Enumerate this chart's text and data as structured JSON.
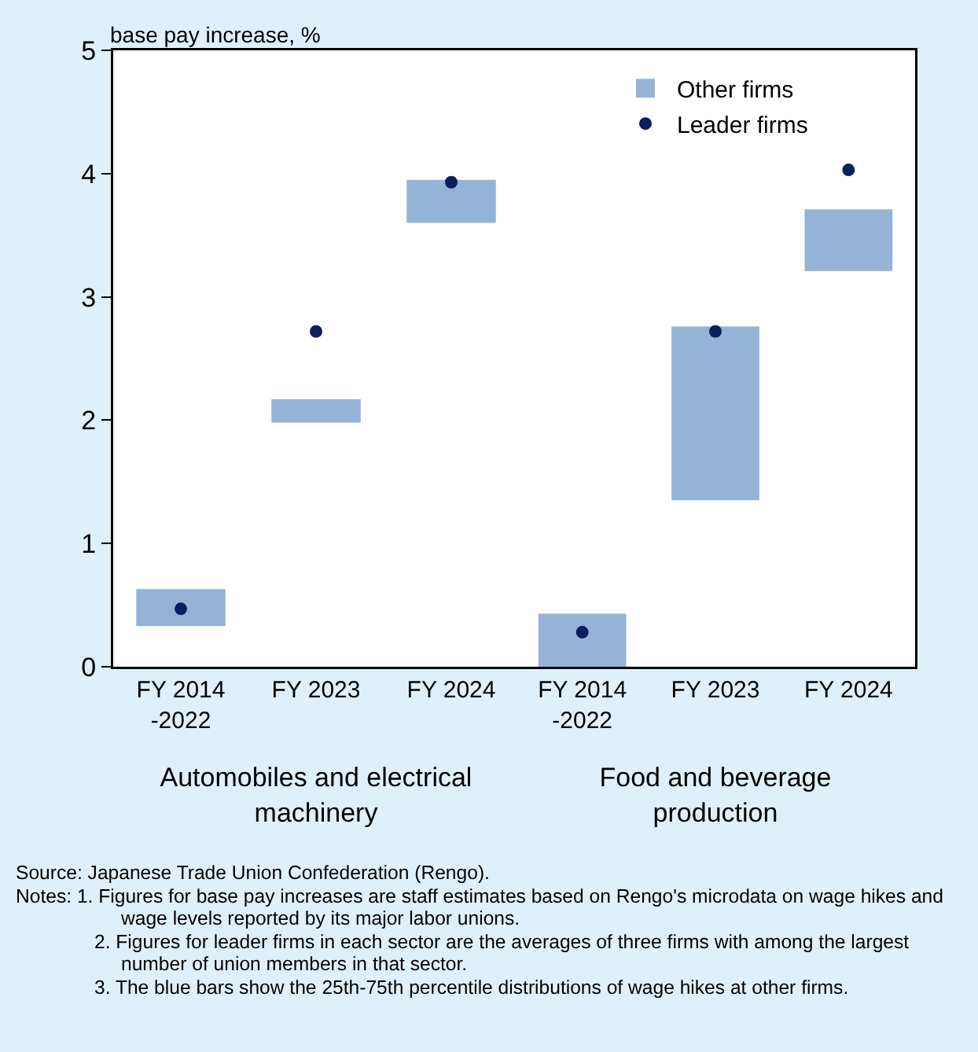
{
  "chart_data": [
    {
      "type": "bar",
      "ylabel": "base pay increase, %",
      "xlabel": "Automobiles and electrical\nmachinery",
      "categories": [
        "FY 2014\n-2022",
        "FY 2023",
        "FY 2024"
      ],
      "series": [
        {
          "color": "#95b3d7",
          "values": [
            0.3,
            0.19,
            0.35
          ],
          "base": [
            0.33,
            1.98,
            3.6
          ]
        },
        {
          "type": "scatter",
          "color": "#0b1f5c",
          "values": [
            0.47,
            2.72,
            3.93
          ]
        }
      ],
      "ylim": [
        0,
        5
      ],
      "yticks": [
        0,
        1,
        2,
        3,
        4,
        5
      ],
      "grid": false,
      "legend": false,
      "marker": "circle",
      "annotations": [
        "Source: Japanese Trade Union Confederation (Rengo).",
        "Notes: 1. Figures for base pay increases are staff estimates based on Rengo's microdata on wage hikes and wage levels reported by its major labor unions.",
        "2. Figures for leader firms in each sector are the averages of three firms with among the largest number of union members in that sector.",
        "3. The blue bars show the 25th-75th percentile distributions of wage hikes at other firms."
      ]
    },
    {
      "type": "bar",
      "xlabel": "Food and beverage\nproduction",
      "categories": [
        "FY 2014\n-2022",
        "FY 2023",
        "FY 2024"
      ],
      "series": [
        {
          "name": "Other firms",
          "color": "#95b3d7",
          "values": [
            0.43,
            1.41,
            0.5
          ],
          "base": [
            0,
            1.35,
            3.21
          ]
        },
        {
          "name": "Leader firms",
          "type": "scatter",
          "color": "#0b1f5c",
          "values": [
            0.28,
            2.72,
            4.03
          ]
        }
      ],
      "ylim": [
        0,
        5
      ],
      "yticks": [
        0,
        1,
        2,
        3,
        4,
        5
      ],
      "grid": false,
      "legend": "top",
      "marker": "circle",
      "tick_labels": "x"
    }
  ]
}
